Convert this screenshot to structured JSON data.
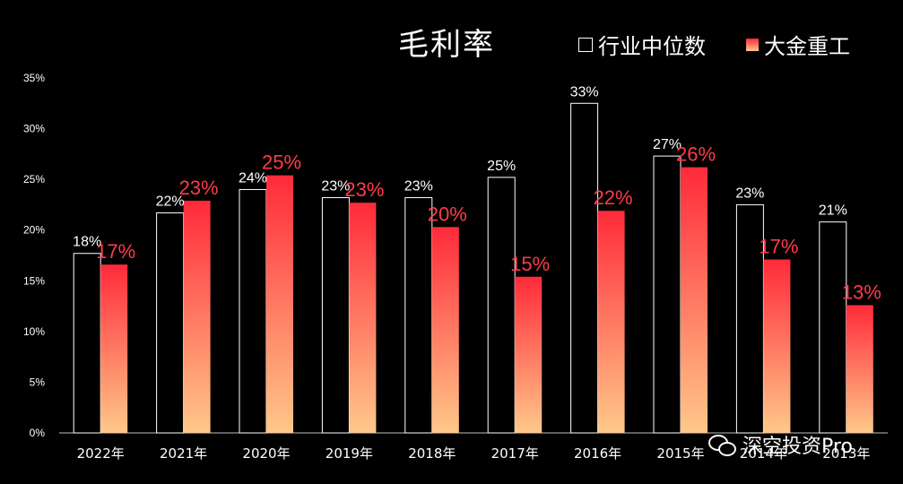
{
  "chart_data": {
    "type": "bar",
    "title": "毛利率",
    "categories": [
      "2022年",
      "2021年",
      "2020年",
      "2019年",
      "2018年",
      "2017年",
      "2016年",
      "2015年",
      "2014年",
      "2013年"
    ],
    "series": [
      {
        "name": "行业中位数",
        "values": [
          17.7,
          21.7,
          24.0,
          23.2,
          23.2,
          25.2,
          32.5,
          27.3,
          22.5,
          20.8
        ],
        "labels": [
          "18%",
          "22%",
          "24%",
          "23%",
          "23%",
          "25%",
          "33%",
          "27%",
          "23%",
          "21%"
        ],
        "label_color": "#ffffff"
      },
      {
        "name": "大金重工",
        "values": [
          16.6,
          22.9,
          25.4,
          22.7,
          20.3,
          15.4,
          21.9,
          26.2,
          17.1,
          12.6
        ],
        "labels": [
          "17%",
          "23%",
          "25%",
          "23%",
          "20%",
          "15%",
          "22%",
          "26%",
          "17%",
          "13%"
        ],
        "label_color": "#ff3b4a"
      }
    ],
    "ylim": [
      0,
      35
    ],
    "yticks": [
      "0%",
      "5%",
      "10%",
      "15%",
      "20%",
      "25%",
      "30%",
      "35%"
    ],
    "grid": false,
    "legend_position": "top-right"
  },
  "legend": {
    "series1": "行业中位数",
    "series2": "大金重工"
  },
  "watermark": {
    "text": "深空投资Pro",
    "icon": "wechat-icon"
  },
  "colors": {
    "background": "#000000",
    "series2_top": "#ff2a3a",
    "series2_bottom": "#ffc88a",
    "series1_label": "#ffffff",
    "series2_label": "#ff3b4a"
  }
}
